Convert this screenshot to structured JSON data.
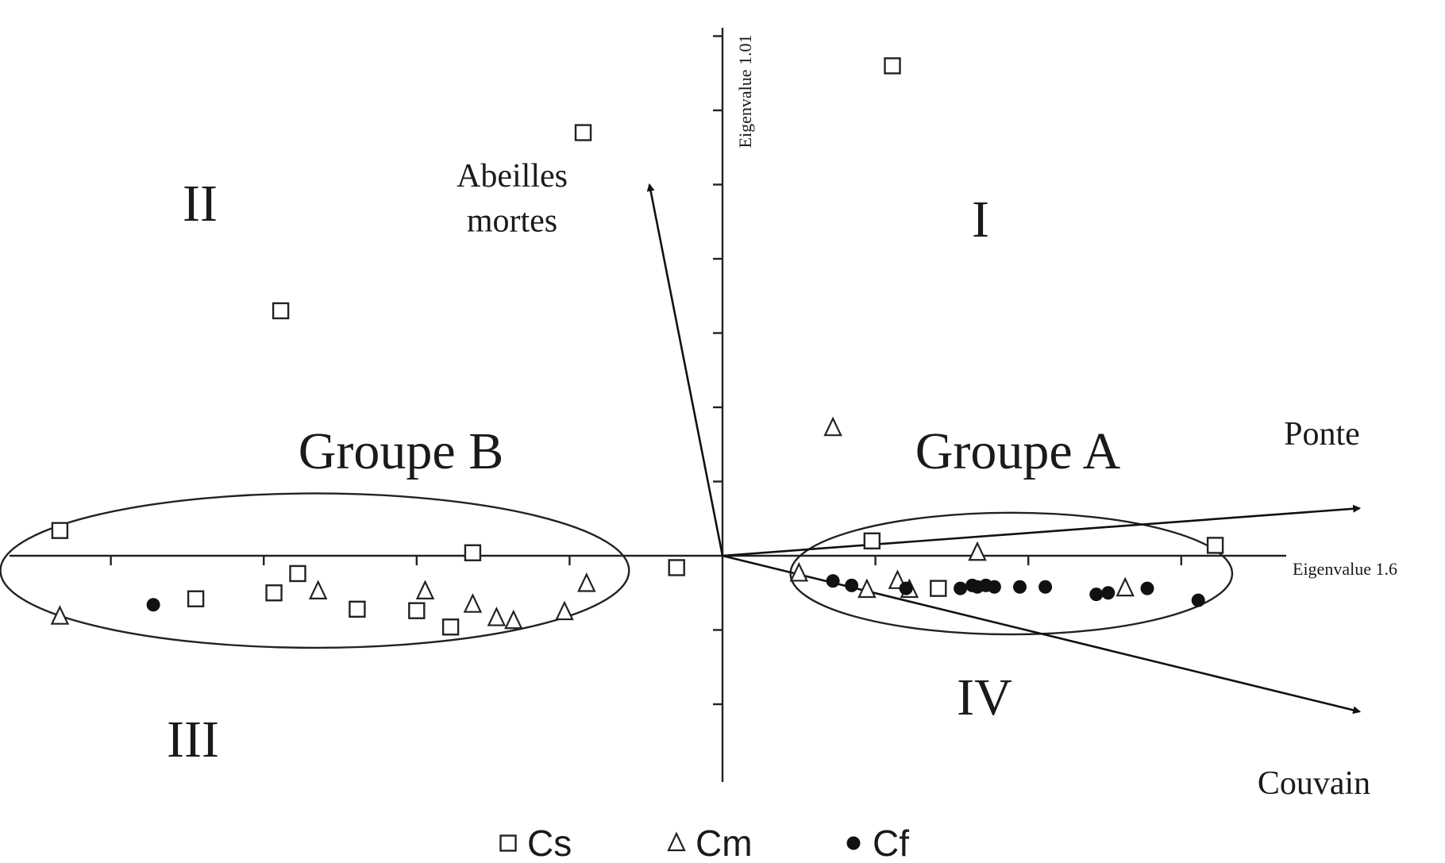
{
  "chart_data": {
    "type": "scatter",
    "title": "",
    "xlabel": "Eigenvalue 1.6",
    "ylabel": "Eigenvalue 1.01",
    "xlim": [
      -4.2,
      3.1
    ],
    "ylim": [
      -1.55,
      3.45
    ],
    "grid": false,
    "legend_position": "bottom-center",
    "quadrants": [
      "I",
      "II",
      "III",
      "IV"
    ],
    "groups": [
      {
        "label": "Groupe A",
        "center": [
          1.7,
          -0.12
        ],
        "rx": 1.3,
        "ry": 0.41
      },
      {
        "label": "Groupe B",
        "center": [
          -2.4,
          -0.1
        ],
        "rx": 1.85,
        "ry": 0.52
      }
    ],
    "vectors": [
      {
        "label_lines": [
          "Abeilles",
          "mortes"
        ],
        "x": -0.43,
        "y": 2.5
      },
      {
        "label_lines": [
          "Ponte"
        ],
        "x": 3.75,
        "y": 0.32
      },
      {
        "label_lines": [
          "Couvain"
        ],
        "x": 3.75,
        "y": -1.05
      }
    ],
    "legend": [
      {
        "label": "Cs",
        "marker": "square"
      },
      {
        "label": "Cm",
        "marker": "triangle"
      },
      {
        "label": "Cf",
        "marker": "circle"
      }
    ],
    "series": [
      {
        "name": "Cs",
        "points": [
          [
            1.0,
            3.3
          ],
          [
            -0.82,
            2.85
          ],
          [
            -2.6,
            1.65
          ],
          [
            0.88,
            0.1
          ],
          [
            2.9,
            0.07
          ],
          [
            -3.9,
            0.17
          ],
          [
            -1.47,
            0.02
          ],
          [
            -0.27,
            -0.08
          ],
          [
            -2.5,
            -0.12
          ],
          [
            -2.64,
            -0.25
          ],
          [
            -3.1,
            -0.29
          ],
          [
            -2.15,
            -0.36
          ],
          [
            -1.8,
            -0.37
          ],
          [
            -1.6,
            -0.48
          ],
          [
            1.27,
            -0.22
          ]
        ]
      },
      {
        "name": "Cm",
        "points": [
          [
            0.65,
            0.86
          ],
          [
            1.5,
            0.02
          ],
          [
            0.45,
            -0.12
          ],
          [
            0.85,
            -0.23
          ],
          [
            1.03,
            -0.17
          ],
          [
            1.1,
            -0.23
          ],
          [
            2.37,
            -0.22
          ],
          [
            -3.9,
            -0.41
          ],
          [
            -2.38,
            -0.24
          ],
          [
            -1.75,
            -0.24
          ],
          [
            -0.8,
            -0.19
          ],
          [
            -1.47,
            -0.33
          ],
          [
            -1.33,
            -0.42
          ],
          [
            -1.23,
            -0.44
          ],
          [
            -0.93,
            -0.38
          ]
        ]
      },
      {
        "name": "Cf",
        "points": [
          [
            -3.35,
            -0.33
          ],
          [
            0.65,
            -0.17
          ],
          [
            0.76,
            -0.2
          ],
          [
            1.08,
            -0.22
          ],
          [
            1.4,
            -0.22
          ],
          [
            1.47,
            -0.2
          ],
          [
            1.5,
            -0.21
          ],
          [
            1.55,
            -0.2
          ],
          [
            1.6,
            -0.21
          ],
          [
            1.75,
            -0.21
          ],
          [
            1.9,
            -0.21
          ],
          [
            2.2,
            -0.26
          ],
          [
            2.27,
            -0.25
          ],
          [
            2.5,
            -0.22
          ],
          [
            2.8,
            -0.3
          ]
        ]
      }
    ]
  }
}
